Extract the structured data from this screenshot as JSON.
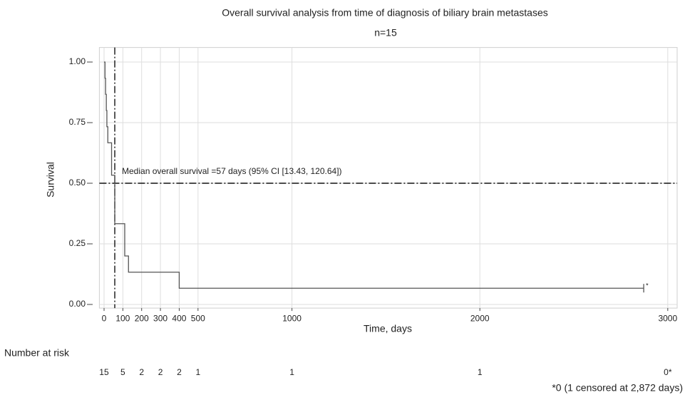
{
  "chart_data": {
    "type": "step",
    "title": "Overall survival analysis from time of diagnosis of biliary brain metastases",
    "subtitle": "n=15",
    "x_label": "Time, days",
    "y_label": "Survival",
    "xlim": [
      -25,
      3050
    ],
    "ylim": [
      -0.015,
      1.06
    ],
    "xticks": [
      0,
      100,
      200,
      300,
      400,
      500,
      1000,
      2000,
      3000
    ],
    "yticks": [
      {
        "value": 0,
        "label": "0.00"
      },
      {
        "value": 0.25,
        "label": "0.25"
      },
      {
        "value": 0.5,
        "label": "0.50"
      },
      {
        "value": 0.75,
        "label": "0.75"
      },
      {
        "value": 1,
        "label": "1.00"
      }
    ],
    "grid": true,
    "series": [
      {
        "color": "#555555",
        "x": [
          0,
          5,
          8,
          12,
          15,
          20,
          40,
          57,
          110,
          130,
          400,
          2872
        ],
        "values": [
          1.0,
          0.933,
          0.867,
          0.8,
          0.733,
          0.667,
          0.533,
          0.333,
          0.2,
          0.133,
          0.067,
          0.067
        ]
      }
    ],
    "censor": {
      "x": 2872,
      "y": 0.067,
      "label": "*"
    },
    "median_line": {
      "x": 57,
      "y": 0.5
    },
    "annotation": "Median overall survival =57 days (95% CI [13.43, 120.64])",
    "risk_table": {
      "title": "Number at risk",
      "x": [
        0,
        100,
        200,
        300,
        400,
        500,
        1000,
        2000,
        3000
      ],
      "values": [
        15,
        5,
        2,
        2,
        2,
        1,
        1,
        1,
        0
      ],
      "value_labels": [
        "15",
        "5",
        "2",
        "2",
        "2",
        "1",
        "1",
        "1",
        "0*"
      ]
    },
    "footnote": "*0 (1 censored at 2,872 days)"
  }
}
